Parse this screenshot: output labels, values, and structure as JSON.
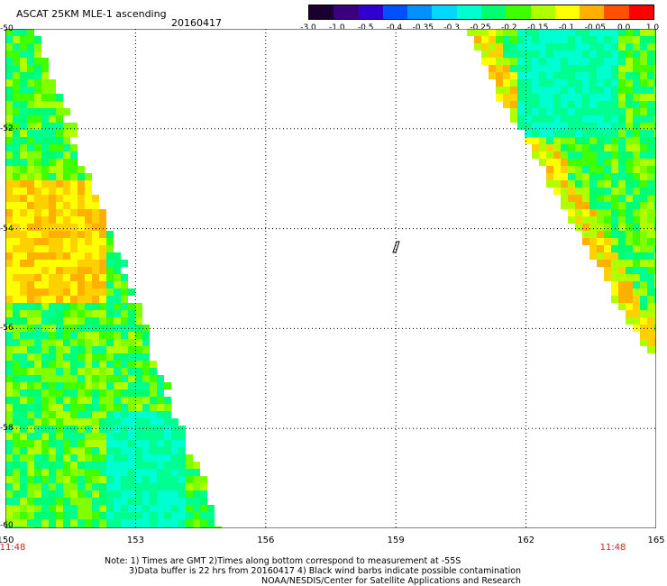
{
  "header": {
    "title": "ASCAT 25KM MLE-1 ascending",
    "date": "20160417"
  },
  "colorbar": {
    "labels": [
      "-3.0",
      "-1.0",
      "-0.5",
      "-0.4",
      "-0.35",
      "-0.3",
      "-0.25",
      "-0.2",
      "-0.15",
      "-0.1",
      "-0.05",
      "0.0",
      "1.0"
    ],
    "colors": [
      "#1a0030",
      "#3a0080",
      "#3000d0",
      "#0050ff",
      "#0090ff",
      "#00d8ff",
      "#00ffd0",
      "#00ff70",
      "#40ff00",
      "#b0ff00",
      "#ffff00",
      "#ffb000",
      "#ff5000",
      "#ff0000"
    ]
  },
  "map": {
    "lon_range": [
      150,
      165
    ],
    "lat_range": [
      -60,
      -50
    ],
    "lon_ticks": [
      "150",
      "153",
      "156",
      "159",
      "162",
      "165"
    ],
    "lat_ticks": [
      "-50",
      "-52",
      "-54",
      "-56",
      "-58",
      "-60"
    ],
    "times": {
      "left": "11:48",
      "right": "11:48"
    }
  },
  "notes": {
    "line1": "Note: 1) Times are GMT 2)Times along bottom correspond to measurement at -55S",
    "line2": "3)Data buffer is 22 hrs from 20160417 4) Black wind barbs indicate possible contamination",
    "line3": "NOAA/NESDIS/Center for Satellite Applications and Research"
  }
}
